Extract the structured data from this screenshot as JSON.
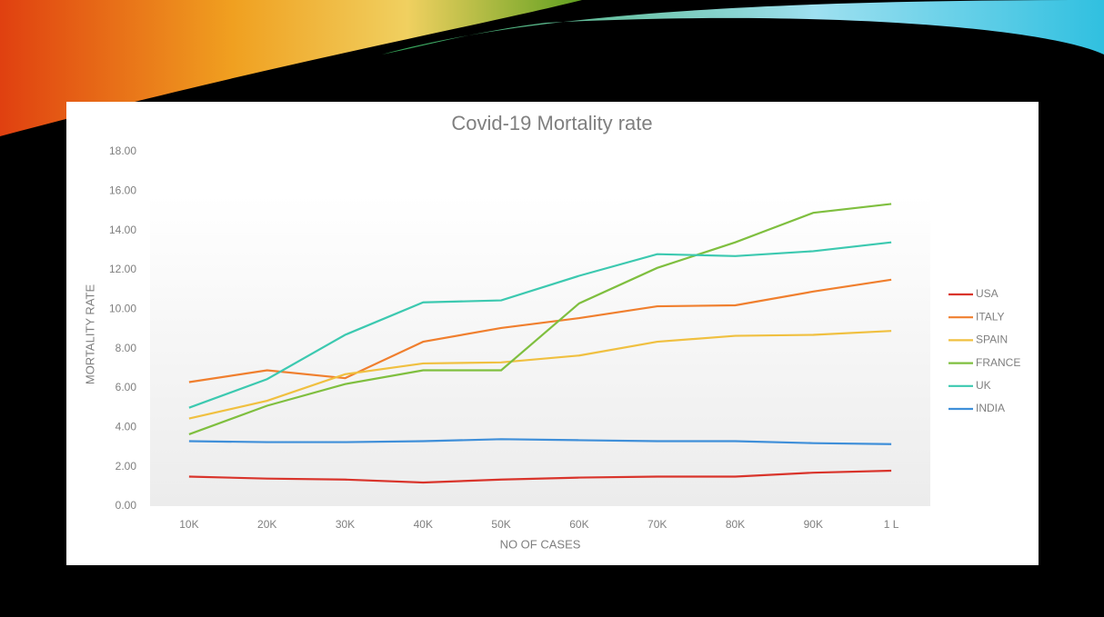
{
  "chart_data": {
    "type": "line",
    "title": "Covid-19 Mortality rate",
    "x_label": "NO OF CASES",
    "y_label": "MORTALITY RATE",
    "categories": [
      "10K",
      "20K",
      "30K",
      "40K",
      "50K",
      "60K",
      "70K",
      "80K",
      "90K",
      "1 L"
    ],
    "series": [
      {
        "name": "USA",
        "color": "#d9342b",
        "values": [
          1.5,
          1.4,
          1.35,
          1.2,
          1.35,
          1.45,
          1.5,
          1.5,
          1.7,
          1.8
        ]
      },
      {
        "name": "ITALY",
        "color": "#f07f2e",
        "values": [
          6.3,
          6.9,
          6.5,
          8.35,
          9.05,
          9.55,
          10.15,
          10.2,
          10.9,
          11.5
        ]
      },
      {
        "name": "SPAIN",
        "color": "#f0c040",
        "values": [
          4.45,
          5.35,
          6.7,
          7.25,
          7.3,
          7.65,
          8.35,
          8.65,
          8.7,
          8.9
        ]
      },
      {
        "name": "FRANCE",
        "color": "#7fbf3f",
        "values": [
          3.65,
          5.1,
          6.2,
          6.9,
          6.9,
          10.3,
          12.1,
          13.4,
          14.9,
          15.35
        ]
      },
      {
        "name": "UK",
        "color": "#3cc9b0",
        "values": [
          5.0,
          6.45,
          8.7,
          10.35,
          10.45,
          11.7,
          12.8,
          12.7,
          12.95,
          13.4
        ]
      },
      {
        "name": "INDIA",
        "color": "#3f8fd9",
        "values": [
          3.3,
          3.25,
          3.25,
          3.3,
          3.4,
          3.35,
          3.3,
          3.3,
          3.2,
          3.15
        ]
      }
    ],
    "ylim": [
      0,
      18
    ],
    "yticks": [
      {
        "value": 0,
        "label": "0.00"
      },
      {
        "value": 2,
        "label": "2.00"
      },
      {
        "value": 4,
        "label": "4.00"
      },
      {
        "value": 6,
        "label": "6.00"
      },
      {
        "value": 8,
        "label": "8.00"
      },
      {
        "value": 10,
        "label": "10.00"
      },
      {
        "value": 12,
        "label": "12.00"
      },
      {
        "value": 14,
        "label": "14.00"
      },
      {
        "value": 16,
        "label": "16.00"
      },
      {
        "value": 18,
        "label": "18.00"
      }
    ],
    "grid": false,
    "legend": "right"
  }
}
